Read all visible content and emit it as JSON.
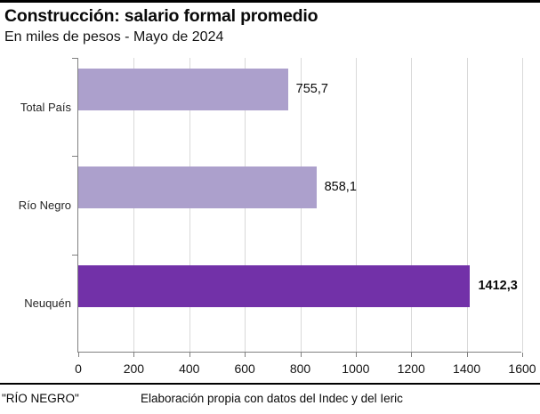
{
  "page": {
    "title": "Construcción: salario formal promedio",
    "subtitle": "En miles de pesos - Mayo de 2024"
  },
  "footer": {
    "source_left": "\"RÍO NEGRO\"",
    "source_right": "Elaboración propia con datos del Indec y del Ieric"
  },
  "chart_data": {
    "type": "bar",
    "orientation": "horizontal",
    "title": "Construcción: salario formal promedio",
    "subtitle": "En miles de pesos - Mayo de 2024",
    "categories": [
      "Total País",
      "Río Negro",
      "Neuquén"
    ],
    "values": [
      755.7,
      858.1,
      1412.3
    ],
    "value_labels": [
      "755,7",
      "858,1",
      "1412,3"
    ],
    "value_label_bold": [
      false,
      false,
      true
    ],
    "bar_colors": [
      "#aca0cc",
      "#aca0cc",
      "#7231a8"
    ],
    "xlabel": "",
    "ylabel": "",
    "xlim": [
      0,
      1600
    ],
    "x_ticks": [
      0,
      200,
      400,
      600,
      800,
      1000,
      1200,
      1400,
      1600
    ],
    "grid": true,
    "legend": false,
    "colors": {
      "bar_light": "#aca0cc",
      "bar_dark": "#7231a8",
      "axis": "#808080",
      "gridline": "#d9d9d9",
      "text": "#0a0a0a",
      "top_rule": "#000000"
    }
  }
}
